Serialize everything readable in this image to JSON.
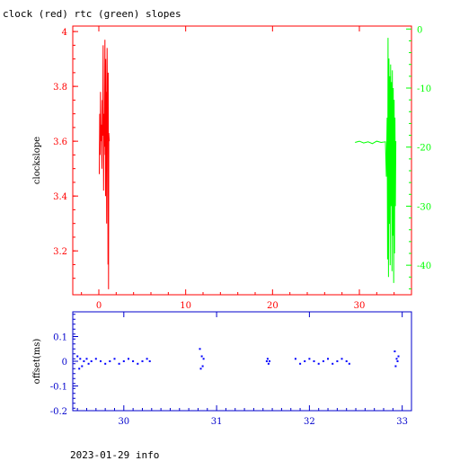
{
  "page": {
    "title": "clock (red) rtc (green) slopes",
    "footer": "2023-01-29 info"
  },
  "colors": {
    "clock": "#ff0000",
    "rtc": "#00ff00",
    "offset": "#0000ff",
    "frame_top": "#ff0000",
    "frame_bottom": "#0000cc"
  },
  "chart_data": [
    {
      "type": "line",
      "title": "clock (red) rtc (green) slopes",
      "ylabel": "clockslope",
      "xlim": [
        -3,
        36
      ],
      "ylim": [
        3.04,
        4.02
      ],
      "xticks": [
        0,
        10,
        20,
        30
      ],
      "yticks": [
        3.2,
        3.4,
        3.6,
        3.8,
        4
      ],
      "ytick_labels": [
        "3.2",
        "3.4",
        "3.6",
        "3.8",
        "4"
      ],
      "y2label": "",
      "y2lim": [
        -45,
        0.5
      ],
      "y2ticks": [
        -40,
        -30,
        -20,
        -10,
        0
      ],
      "grid": false,
      "series": [
        {
          "name": "clock",
          "axis": "left",
          "x": [
            0.05,
            0.1,
            0.15,
            0.2,
            0.25,
            0.3,
            0.35,
            0.4,
            0.45,
            0.5,
            0.55,
            0.6,
            0.65,
            0.7,
            0.72,
            0.75,
            0.78,
            0.8,
            0.83,
            0.86,
            0.9,
            0.95,
            1.0,
            1.02,
            1.05,
            1.08,
            1.1,
            1.12,
            1.15,
            1.2
          ],
          "y": [
            3.48,
            3.7,
            3.55,
            3.78,
            3.6,
            3.66,
            3.5,
            3.75,
            3.62,
            3.95,
            3.42,
            3.7,
            3.58,
            3.97,
            3.55,
            3.82,
            3.4,
            3.9,
            3.6,
            3.78,
            3.3,
            3.94,
            3.62,
            3.7,
            3.15,
            3.85,
            3.58,
            3.06,
            3.63,
            3.6
          ]
        },
        {
          "name": "rtc",
          "axis": "right",
          "x": [
            29.5,
            30.0,
            30.5,
            31.0,
            31.5,
            32.0,
            32.5,
            33.0,
            33.1,
            33.2,
            33.25,
            33.3,
            33.35,
            33.4,
            33.45,
            33.5,
            33.55,
            33.6,
            33.65,
            33.7,
            33.75,
            33.8,
            33.85,
            33.9,
            33.95,
            34.0,
            34.05,
            34.1,
            34.15,
            34.2
          ],
          "y": [
            -19.2,
            -19.0,
            -19.3,
            -19.1,
            -19.4,
            -19.0,
            -19.2,
            -19.1,
            -25.0,
            -15.0,
            -39.0,
            -1.5,
            -42.0,
            -5.0,
            -33.0,
            -8.0,
            -40.0,
            -6.0,
            -30.0,
            -9.0,
            -41.0,
            -7.0,
            -35.0,
            -10.0,
            -43.0,
            -12.0,
            -38.0,
            -15.0,
            -30.0,
            -19.0
          ]
        }
      ]
    },
    {
      "type": "scatter",
      "ylabel": "offset(ms)",
      "xlim": [
        29.45,
        33.1
      ],
      "ylim": [
        -0.2,
        0.2
      ],
      "xticks": [
        30,
        31,
        32,
        33
      ],
      "yticks": [
        -0.2,
        -0.1,
        0,
        0.1
      ],
      "ytick_labels": [
        "-0.2",
        "-0.1",
        "0",
        "0.1"
      ],
      "grid": false,
      "series": [
        {
          "name": "offset",
          "x": [
            29.5,
            29.52,
            29.53,
            29.55,
            29.57,
            29.6,
            29.62,
            29.65,
            29.7,
            29.75,
            29.8,
            29.85,
            29.9,
            29.95,
            30.0,
            30.05,
            30.1,
            30.15,
            30.2,
            30.25,
            30.28,
            30.82,
            30.83,
            30.84,
            30.85,
            30.86,
            31.54,
            31.55,
            31.56,
            31.57,
            31.85,
            31.9,
            31.95,
            32.0,
            32.05,
            32.1,
            32.15,
            32.2,
            32.25,
            32.3,
            32.35,
            32.4,
            32.43,
            32.92,
            32.93,
            32.94,
            32.95,
            32.96
          ],
          "y": [
            0.02,
            -0.03,
            0.01,
            -0.02,
            0.0,
            0.01,
            -0.01,
            0.0,
            0.01,
            0.0,
            -0.01,
            0.0,
            0.01,
            -0.01,
            0.0,
            0.01,
            0.0,
            -0.01,
            0.0,
            0.01,
            0.0,
            0.05,
            -0.03,
            0.02,
            -0.02,
            0.01,
            0.0,
            0.01,
            -0.01,
            0.0,
            0.01,
            -0.01,
            0.0,
            0.01,
            0.0,
            -0.01,
            0.0,
            0.01,
            -0.01,
            0.0,
            0.01,
            0.0,
            -0.01,
            0.04,
            -0.02,
            0.01,
            0.0,
            0.02
          ]
        }
      ]
    }
  ]
}
